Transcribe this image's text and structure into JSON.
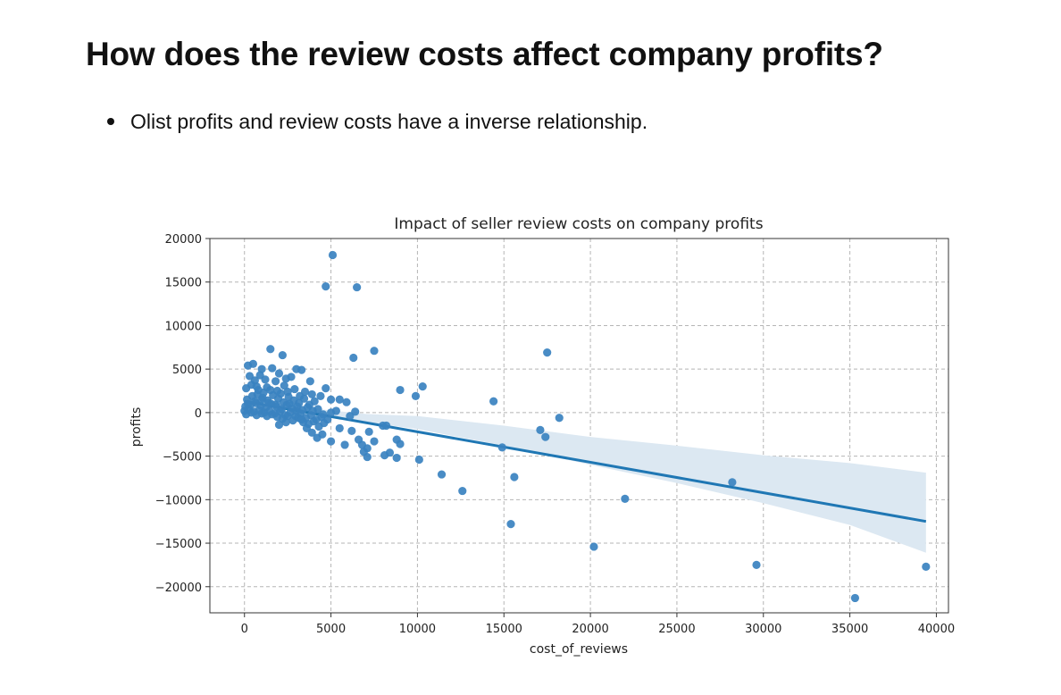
{
  "page": {
    "heading": "How does the review costs affect company profits?",
    "bullets": [
      "Olist profits and review costs have a inverse relationship."
    ]
  },
  "colors": {
    "points": "#3a82c0",
    "regression_line": "#1f77b4",
    "confidence_band": "#dce8f2",
    "grid": "#b5b5b5"
  },
  "chart_data": {
    "type": "scatter",
    "title": "Impact of seller review costs on company profits",
    "xlabel": "cost_of_reviews",
    "ylabel": "profits",
    "xlim": [
      -2000,
      40700
    ],
    "ylim": [
      -23000,
      20000
    ],
    "xticks": [
      0,
      5000,
      10000,
      15000,
      20000,
      25000,
      30000,
      35000,
      40000
    ],
    "xtick_labels": [
      "0",
      "5000",
      "10000",
      "15000",
      "20000",
      "25000",
      "30000",
      "35000",
      "40000"
    ],
    "yticks": [
      20000,
      15000,
      10000,
      5000,
      0,
      -5000,
      -10000,
      -15000,
      -20000
    ],
    "ytick_labels": [
      "20000",
      "15000",
      "10000",
      "5000",
      "0",
      "−5000",
      "−10000",
      "−15000",
      "−20000"
    ],
    "grid": true,
    "grid_style": "dashed",
    "regression": {
      "x": [
        0,
        39400
      ],
      "y": [
        1300,
        -12500
      ]
    },
    "confidence_band": {
      "x": [
        0,
        1000,
        3000,
        5000,
        7000,
        10000,
        15000,
        20000,
        25000,
        30000,
        35000,
        39400
      ],
      "upper": [
        1450,
        1150,
        700,
        250,
        -150,
        -400,
        -1500,
        -2800,
        -3800,
        -4900,
        -5800,
        -6900
      ],
      "lower": [
        1150,
        800,
        150,
        -600,
        -1100,
        -1900,
        -3800,
        -6000,
        -8100,
        -10400,
        -12900,
        -16100
      ]
    },
    "points": [
      [
        5100,
        18100
      ],
      [
        4700,
        14500
      ],
      [
        6500,
        14400
      ],
      [
        1500,
        7300
      ],
      [
        7500,
        7100
      ],
      [
        17500,
        6900
      ],
      [
        2200,
        6600
      ],
      [
        6300,
        6300
      ],
      [
        500,
        5600
      ],
      [
        200,
        5400
      ],
      [
        2000,
        4500
      ],
      [
        1000,
        5000
      ],
      [
        1600,
        5100
      ],
      [
        3000,
        5000
      ],
      [
        3300,
        4900
      ],
      [
        2400,
        3900
      ],
      [
        3800,
        3600
      ],
      [
        4700,
        2800
      ],
      [
        9000,
        2600
      ],
      [
        10300,
        3000
      ],
      [
        9900,
        1900
      ],
      [
        14400,
        1300
      ],
      [
        5000,
        1500
      ],
      [
        5500,
        1500
      ],
      [
        5900,
        1200
      ],
      [
        6400,
        100
      ],
      [
        6100,
        -400
      ],
      [
        5300,
        200
      ],
      [
        5000,
        0
      ],
      [
        4800,
        -800
      ],
      [
        5500,
        -1800
      ],
      [
        6200,
        -2100
      ],
      [
        6600,
        -3100
      ],
      [
        7200,
        -2200
      ],
      [
        7500,
        -3300
      ],
      [
        8000,
        -1500
      ],
      [
        8200,
        -1500
      ],
      [
        7100,
        -4100
      ],
      [
        6900,
        -4500
      ],
      [
        7100,
        -5100
      ],
      [
        6800,
        -3700
      ],
      [
        5800,
        -3700
      ],
      [
        5000,
        -3300
      ],
      [
        4500,
        -2500
      ],
      [
        4200,
        -2900
      ],
      [
        8400,
        -4600
      ],
      [
        8800,
        -3100
      ],
      [
        9000,
        -3600
      ],
      [
        8100,
        -4900
      ],
      [
        8800,
        -5200
      ],
      [
        10100,
        -5400
      ],
      [
        11400,
        -7100
      ],
      [
        12600,
        -9000
      ],
      [
        14900,
        -4000
      ],
      [
        15600,
        -7400
      ],
      [
        15400,
        -12800
      ],
      [
        17100,
        -2000
      ],
      [
        17400,
        -2800
      ],
      [
        18200,
        -600
      ],
      [
        20200,
        -15400
      ],
      [
        22000,
        -9900
      ],
      [
        28200,
        -8000
      ],
      [
        29600,
        -17500
      ],
      [
        35300,
        -21300
      ],
      [
        39400,
        -17700
      ],
      [
        300,
        4200
      ],
      [
        600,
        3700
      ],
      [
        900,
        4300
      ],
      [
        1200,
        3800
      ],
      [
        1800,
        3600
      ],
      [
        2700,
        4100
      ],
      [
        100,
        2800
      ],
      [
        400,
        3200
      ],
      [
        800,
        2600
      ],
      [
        1300,
        2900
      ],
      [
        1900,
        2500
      ],
      [
        2300,
        3100
      ],
      [
        2900,
        2700
      ],
      [
        3500,
        2400
      ],
      [
        3900,
        2100
      ],
      [
        4400,
        1900
      ],
      [
        150,
        1500
      ],
      [
        450,
        1900
      ],
      [
        750,
        2100
      ],
      [
        1050,
        1700
      ],
      [
        1350,
        1400
      ],
      [
        1650,
        2000
      ],
      [
        1950,
        1600
      ],
      [
        2250,
        1200
      ],
      [
        2550,
        1800
      ],
      [
        2850,
        1400
      ],
      [
        3150,
        1100
      ],
      [
        3450,
        1600
      ],
      [
        3750,
        900
      ],
      [
        4050,
        1300
      ],
      [
        50,
        700
      ],
      [
        350,
        900
      ],
      [
        650,
        1100
      ],
      [
        950,
        800
      ],
      [
        1250,
        600
      ],
      [
        1550,
        1000
      ],
      [
        1850,
        700
      ],
      [
        2150,
        400
      ],
      [
        2450,
        900
      ],
      [
        2750,
        500
      ],
      [
        3050,
        700
      ],
      [
        3350,
        300
      ],
      [
        3650,
        600
      ],
      [
        3950,
        200
      ],
      [
        4250,
        400
      ],
      [
        4550,
        -200
      ],
      [
        0,
        200
      ],
      [
        250,
        400
      ],
      [
        550,
        100
      ],
      [
        850,
        300
      ],
      [
        1150,
        0
      ],
      [
        1450,
        200
      ],
      [
        1750,
        -100
      ],
      [
        2050,
        100
      ],
      [
        2350,
        -300
      ],
      [
        2650,
        0
      ],
      [
        2950,
        -400
      ],
      [
        3250,
        -100
      ],
      [
        3550,
        -600
      ],
      [
        3850,
        -300
      ],
      [
        4150,
        -800
      ],
      [
        4450,
        -500
      ],
      [
        100,
        -200
      ],
      [
        400,
        0
      ],
      [
        700,
        -300
      ],
      [
        1000,
        -100
      ],
      [
        1300,
        -400
      ],
      [
        1600,
        -200
      ],
      [
        1900,
        -500
      ],
      [
        2200,
        -700
      ],
      [
        2500,
        -400
      ],
      [
        2800,
        -900
      ],
      [
        3100,
        -600
      ],
      [
        3400,
        -1100
      ],
      [
        3700,
        -1300
      ],
      [
        4000,
        -1000
      ],
      [
        4300,
        -1600
      ],
      [
        4600,
        -1200
      ],
      [
        200,
        1000
      ],
      [
        600,
        1300
      ],
      [
        1000,
        1500
      ],
      [
        1400,
        1100
      ],
      [
        1800,
        900
      ],
      [
        2600,
        1000
      ],
      [
        3000,
        200
      ],
      [
        3300,
        -800
      ],
      [
        2000,
        -1400
      ],
      [
        2400,
        -1100
      ],
      [
        3600,
        -1800
      ],
      [
        3900,
        -2300
      ],
      [
        700,
        3000
      ],
      [
        1100,
        2300
      ],
      [
        1500,
        2600
      ],
      [
        2100,
        2200
      ],
      [
        2500,
        2400
      ],
      [
        3200,
        1900
      ]
    ]
  }
}
